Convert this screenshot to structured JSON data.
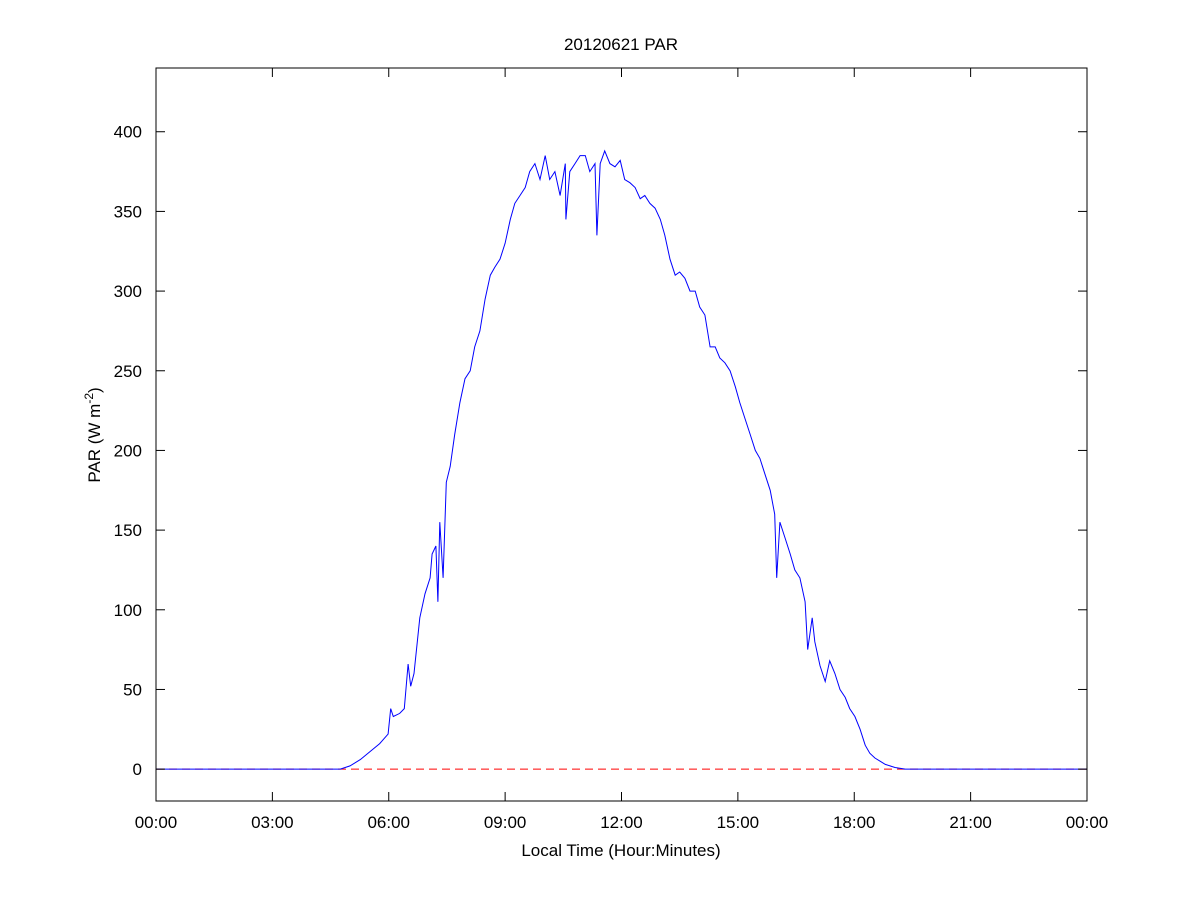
{
  "chart_data": {
    "type": "line",
    "title": "20120621 PAR",
    "xlabel": "Local Time (Hour:Minutes)",
    "ylabel": "PAR (W m",
    "ylabel_superscript": "-2",
    "ylabel_suffix": ")",
    "xlim": [
      "00:00",
      "24:00"
    ],
    "ylim": [
      -20,
      440
    ],
    "x_ticks": [
      "00:00",
      "03:00",
      "06:00",
      "09:00",
      "12:00",
      "15:00",
      "18:00",
      "21:00",
      "00:00"
    ],
    "y_ticks": [
      0,
      50,
      100,
      150,
      200,
      250,
      300,
      350,
      400
    ],
    "grid": false,
    "colors": {
      "series": "#0000ff",
      "reference": "#ff0000"
    },
    "reference_line": {
      "y": 0,
      "style": "dashed"
    },
    "series": [
      {
        "x": [
          "00:00",
          "04:45",
          "05:00",
          "05:16",
          "05:31",
          "05:46",
          "05:59",
          "06:03",
          "06:07",
          "06:17",
          "06:24",
          "06:30",
          "06:34",
          "06:39",
          "06:48",
          "06:56",
          "07:04",
          "07:07",
          "07:13",
          "07:16",
          "07:19",
          "07:24",
          "07:29",
          "07:35",
          "07:42",
          "07:50",
          "07:58",
          "08:06",
          "08:13",
          "08:21",
          "08:29",
          "08:37",
          "08:44",
          "08:52",
          "09:00",
          "09:08",
          "09:15",
          "09:23",
          "09:31",
          "09:38",
          "09:46",
          "09:54",
          "10:02",
          "10:09",
          "10:17",
          "10:25",
          "10:33",
          "10:34",
          "10:40",
          "10:48",
          "10:56",
          "11:04",
          "11:11",
          "11:19",
          "11:22",
          "11:27",
          "11:34",
          "11:42",
          "11:50",
          "11:58",
          "12:05",
          "12:13",
          "12:21",
          "12:29",
          "12:36",
          "12:44",
          "12:52",
          "13:00",
          "13:07",
          "13:15",
          "13:23",
          "13:30",
          "13:38",
          "13:46",
          "13:54",
          "14:01",
          "14:09",
          "14:17",
          "14:25",
          "14:32",
          "14:40",
          "14:48",
          "14:56",
          "15:03",
          "15:11",
          "15:19",
          "15:27",
          "15:34",
          "15:42",
          "15:50",
          "15:57",
          "16:00",
          "16:05",
          "16:13",
          "16:21",
          "16:28",
          "16:36",
          "16:44",
          "16:48",
          "16:55",
          "16:59",
          "17:07",
          "17:15",
          "17:22",
          "17:30",
          "17:38",
          "17:46",
          "17:53",
          "18:01",
          "18:09",
          "18:17",
          "18:24",
          "18:32",
          "18:40",
          "18:48",
          "19:03",
          "19:19",
          "19:30",
          "24:00"
        ],
        "y": [
          0,
          0,
          2,
          6,
          11,
          16,
          22,
          38,
          33,
          35,
          38,
          66,
          52,
          60,
          95,
          110,
          120,
          135,
          140,
          105,
          155,
          120,
          180,
          190,
          210,
          230,
          245,
          250,
          265,
          275,
          295,
          310,
          315,
          320,
          330,
          345,
          355,
          360,
          365,
          375,
          380,
          370,
          385,
          370,
          375,
          360,
          380,
          345,
          375,
          380,
          385,
          385,
          375,
          380,
          335,
          380,
          388,
          380,
          378,
          382,
          370,
          368,
          365,
          358,
          360,
          355,
          352,
          345,
          335,
          320,
          310,
          312,
          308,
          300,
          300,
          290,
          285,
          265,
          265,
          258,
          255,
          250,
          240,
          230,
          220,
          210,
          200,
          195,
          185,
          175,
          160,
          120,
          155,
          145,
          135,
          125,
          120,
          105,
          75,
          95,
          80,
          65,
          55,
          68,
          60,
          50,
          45,
          38,
          33,
          25,
          15,
          10,
          7,
          5,
          3,
          1,
          0,
          0,
          0
        ]
      }
    ]
  }
}
